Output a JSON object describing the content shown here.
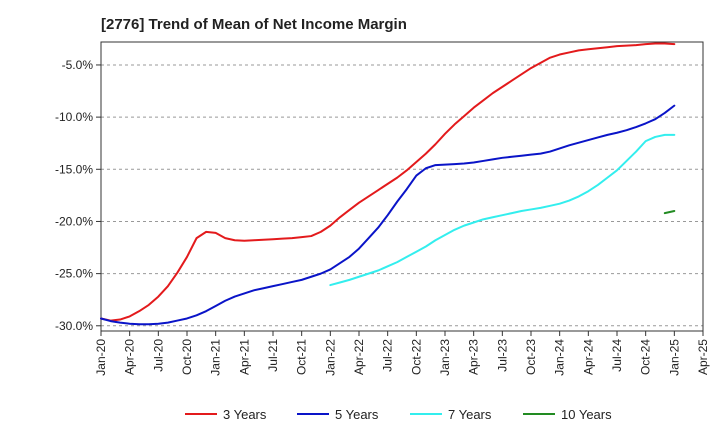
{
  "chart_data": {
    "type": "line",
    "title": "[2776]  Trend of Mean of Net Income Margin",
    "xlabel": "",
    "ylabel": "",
    "x_ticks": [
      "Jan-20",
      "Apr-20",
      "Jul-20",
      "Oct-20",
      "Jan-21",
      "Apr-21",
      "Jul-21",
      "Oct-21",
      "Jan-22",
      "Apr-22",
      "Jul-22",
      "Oct-22",
      "Jan-23",
      "Apr-23",
      "Jul-23",
      "Oct-23",
      "Jan-24",
      "Apr-24",
      "Jul-24",
      "Oct-24",
      "Jan-25",
      "Apr-25"
    ],
    "y_ticks": [
      "-5.0%",
      "-10.0%",
      "-15.0%",
      "-20.0%",
      "-25.0%",
      "-30.0%"
    ],
    "y_tick_values": [
      -5,
      -10,
      -15,
      -20,
      -25,
      -30
    ],
    "ylim": [
      -30.5,
      -2.8
    ],
    "xlim": [
      "Jan-20",
      "Apr-25"
    ],
    "grid": "horizontal dashed",
    "legend_position": "bottom",
    "series": [
      {
        "name": "3 Years",
        "color": "#e31a1c",
        "points": [
          [
            "Jan-20",
            -29.3
          ],
          [
            "Feb-20",
            -29.5
          ],
          [
            "Mar-20",
            -29.4
          ],
          [
            "Apr-20",
            -29.1
          ],
          [
            "May-20",
            -28.6
          ],
          [
            "Jun-20",
            -28.0
          ],
          [
            "Jul-20",
            -27.2
          ],
          [
            "Aug-20",
            -26.2
          ],
          [
            "Sep-20",
            -24.9
          ],
          [
            "Oct-20",
            -23.4
          ],
          [
            "Nov-20",
            -21.6
          ],
          [
            "Dec-20",
            -21.0
          ],
          [
            "Jan-21",
            -21.1
          ],
          [
            "Feb-21",
            -21.6
          ],
          [
            "Mar-21",
            -21.8
          ],
          [
            "Apr-21",
            -21.85
          ],
          [
            "May-21",
            -21.8
          ],
          [
            "Jun-21",
            -21.75
          ],
          [
            "Jul-21",
            -21.7
          ],
          [
            "Aug-21",
            -21.65
          ],
          [
            "Sep-21",
            -21.6
          ],
          [
            "Oct-21",
            -21.5
          ],
          [
            "Nov-21",
            -21.4
          ],
          [
            "Dec-21",
            -21.0
          ],
          [
            "Jan-22",
            -20.4
          ],
          [
            "Feb-22",
            -19.6
          ],
          [
            "Mar-22",
            -18.9
          ],
          [
            "Apr-22",
            -18.2
          ],
          [
            "May-22",
            -17.6
          ],
          [
            "Jun-22",
            -17.0
          ],
          [
            "Jul-22",
            -16.4
          ],
          [
            "Aug-22",
            -15.8
          ],
          [
            "Sep-22",
            -15.1
          ],
          [
            "Oct-22",
            -14.3
          ],
          [
            "Nov-22",
            -13.5
          ],
          [
            "Dec-22",
            -12.6
          ],
          [
            "Jan-23",
            -11.6
          ],
          [
            "Feb-23",
            -10.7
          ],
          [
            "Mar-23",
            -9.9
          ],
          [
            "Apr-23",
            -9.1
          ],
          [
            "May-23",
            -8.4
          ],
          [
            "Jun-23",
            -7.7
          ],
          [
            "Jul-23",
            -7.1
          ],
          [
            "Aug-23",
            -6.5
          ],
          [
            "Sep-23",
            -5.9
          ],
          [
            "Oct-23",
            -5.3
          ],
          [
            "Nov-23",
            -4.8
          ],
          [
            "Dec-23",
            -4.3
          ],
          [
            "Jan-24",
            -4.0
          ],
          [
            "Feb-24",
            -3.8
          ],
          [
            "Mar-24",
            -3.6
          ],
          [
            "Apr-24",
            -3.5
          ],
          [
            "May-24",
            -3.4
          ],
          [
            "Jun-24",
            -3.3
          ],
          [
            "Jul-24",
            -3.2
          ],
          [
            "Aug-24",
            -3.15
          ],
          [
            "Sep-24",
            -3.1
          ],
          [
            "Oct-24",
            -3.0
          ],
          [
            "Nov-24",
            -2.95
          ],
          [
            "Dec-24",
            -2.95
          ],
          [
            "Jan-25",
            -3.0
          ]
        ]
      },
      {
        "name": "5 Years",
        "color": "#0a14c8",
        "points": [
          [
            "Jan-20",
            -29.3
          ],
          [
            "Feb-20",
            -29.55
          ],
          [
            "Mar-20",
            -29.7
          ],
          [
            "Apr-20",
            -29.8
          ],
          [
            "May-20",
            -29.85
          ],
          [
            "Jun-20",
            -29.85
          ],
          [
            "Jul-20",
            -29.8
          ],
          [
            "Aug-20",
            -29.7
          ],
          [
            "Sep-20",
            -29.5
          ],
          [
            "Oct-20",
            -29.3
          ],
          [
            "Nov-20",
            -29.0
          ],
          [
            "Dec-20",
            -28.6
          ],
          [
            "Jan-21",
            -28.1
          ],
          [
            "Feb-21",
            -27.6
          ],
          [
            "Mar-21",
            -27.2
          ],
          [
            "Apr-21",
            -26.9
          ],
          [
            "May-21",
            -26.6
          ],
          [
            "Jun-21",
            -26.4
          ],
          [
            "Jul-21",
            -26.2
          ],
          [
            "Aug-21",
            -26.0
          ],
          [
            "Sep-21",
            -25.8
          ],
          [
            "Oct-21",
            -25.6
          ],
          [
            "Nov-21",
            -25.3
          ],
          [
            "Dec-21",
            -25.0
          ],
          [
            "Jan-22",
            -24.6
          ],
          [
            "Feb-22",
            -24.0
          ],
          [
            "Mar-22",
            -23.4
          ],
          [
            "Apr-22",
            -22.6
          ],
          [
            "May-22",
            -21.6
          ],
          [
            "Jun-22",
            -20.6
          ],
          [
            "Jul-22",
            -19.4
          ],
          [
            "Aug-22",
            -18.1
          ],
          [
            "Sep-22",
            -16.9
          ],
          [
            "Oct-22",
            -15.6
          ],
          [
            "Nov-22",
            -14.9
          ],
          [
            "Dec-22",
            -14.6
          ],
          [
            "Jan-23",
            -14.55
          ],
          [
            "Feb-23",
            -14.5
          ],
          [
            "Mar-23",
            -14.45
          ],
          [
            "Apr-23",
            -14.35
          ],
          [
            "May-23",
            -14.2
          ],
          [
            "Jun-23",
            -14.05
          ],
          [
            "Jul-23",
            -13.9
          ],
          [
            "Aug-23",
            -13.8
          ],
          [
            "Sep-23",
            -13.7
          ],
          [
            "Oct-23",
            -13.6
          ],
          [
            "Nov-23",
            -13.5
          ],
          [
            "Dec-23",
            -13.3
          ],
          [
            "Jan-24",
            -13.0
          ],
          [
            "Feb-24",
            -12.7
          ],
          [
            "Mar-24",
            -12.45
          ],
          [
            "Apr-24",
            -12.2
          ],
          [
            "May-24",
            -11.95
          ],
          [
            "Jun-24",
            -11.7
          ],
          [
            "Jul-24",
            -11.5
          ],
          [
            "Aug-24",
            -11.25
          ],
          [
            "Sep-24",
            -10.95
          ],
          [
            "Oct-24",
            -10.6
          ],
          [
            "Nov-24",
            -10.2
          ],
          [
            "Dec-24",
            -9.6
          ],
          [
            "Jan-25",
            -8.9
          ]
        ]
      },
      {
        "name": "7 Years",
        "color": "#33eeee",
        "points": [
          [
            "Jan-22",
            -26.1
          ],
          [
            "Feb-22",
            -25.85
          ],
          [
            "Mar-22",
            -25.6
          ],
          [
            "Apr-22",
            -25.3
          ],
          [
            "May-22",
            -25.0
          ],
          [
            "Jun-22",
            -24.7
          ],
          [
            "Jul-22",
            -24.3
          ],
          [
            "Aug-22",
            -23.9
          ],
          [
            "Sep-22",
            -23.4
          ],
          [
            "Oct-22",
            -22.9
          ],
          [
            "Nov-22",
            -22.4
          ],
          [
            "Dec-22",
            -21.8
          ],
          [
            "Jan-23",
            -21.3
          ],
          [
            "Feb-23",
            -20.8
          ],
          [
            "Mar-23",
            -20.4
          ],
          [
            "Apr-23",
            -20.1
          ],
          [
            "May-23",
            -19.8
          ],
          [
            "Jun-23",
            -19.6
          ],
          [
            "Jul-23",
            -19.4
          ],
          [
            "Aug-23",
            -19.2
          ],
          [
            "Sep-23",
            -19.0
          ],
          [
            "Oct-23",
            -18.85
          ],
          [
            "Nov-23",
            -18.7
          ],
          [
            "Dec-23",
            -18.5
          ],
          [
            "Jan-24",
            -18.3
          ],
          [
            "Feb-24",
            -18.0
          ],
          [
            "Mar-24",
            -17.6
          ],
          [
            "Apr-24",
            -17.1
          ],
          [
            "May-24",
            -16.5
          ],
          [
            "Jun-24",
            -15.8
          ],
          [
            "Jul-24",
            -15.1
          ],
          [
            "Aug-24",
            -14.2
          ],
          [
            "Sep-24",
            -13.3
          ],
          [
            "Oct-24",
            -12.3
          ],
          [
            "Nov-24",
            -11.9
          ],
          [
            "Dec-24",
            -11.7
          ],
          [
            "Jan-25",
            -11.7
          ]
        ]
      },
      {
        "name": "10 Years",
        "color": "#228b22",
        "points": [
          [
            "Dec-24",
            -19.2
          ],
          [
            "Jan-25",
            -19.0
          ]
        ]
      }
    ]
  }
}
